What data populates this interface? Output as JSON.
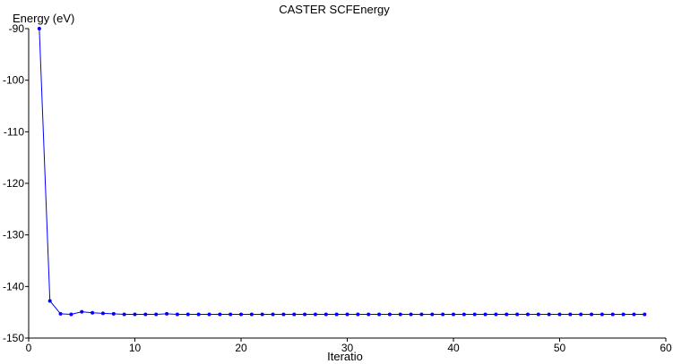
{
  "chart_data": {
    "type": "line",
    "title": "CASTER SCFEnergy",
    "xlabel": "Iteratio",
    "ylabel": "Energy (eV)",
    "xlim": [
      0,
      60
    ],
    "ylim": [
      -150,
      -90
    ],
    "xticks": [
      0,
      10,
      20,
      30,
      40,
      50,
      60
    ],
    "yticks": [
      -90,
      -100,
      -110,
      -120,
      -130,
      -140,
      -150
    ],
    "grid": false,
    "legend": "none",
    "series": [
      {
        "color": "#0000ff",
        "x": [
          1,
          2,
          3,
          4,
          5,
          6,
          7,
          8,
          9,
          10,
          11,
          12,
          13,
          14,
          15,
          16,
          17,
          18,
          19,
          20,
          21,
          22,
          23,
          24,
          25,
          26,
          27,
          28,
          29,
          30,
          31,
          32,
          33,
          34,
          35,
          36,
          37,
          38,
          39,
          40,
          41,
          42,
          43,
          44,
          45,
          46,
          47,
          48,
          49,
          50,
          51,
          52,
          53,
          54,
          55,
          56,
          57,
          58
        ],
        "values": [
          -90.0,
          -142.8,
          -145.3,
          -145.4,
          -144.9,
          -145.1,
          -145.2,
          -145.3,
          -145.4,
          -145.4,
          -145.4,
          -145.4,
          -145.3,
          -145.4,
          -145.4,
          -145.4,
          -145.4,
          -145.4,
          -145.4,
          -145.4,
          -145.4,
          -145.4,
          -145.4,
          -145.4,
          -145.4,
          -145.4,
          -145.4,
          -145.4,
          -145.4,
          -145.4,
          -145.4,
          -145.4,
          -145.4,
          -145.4,
          -145.4,
          -145.4,
          -145.4,
          -145.4,
          -145.4,
          -145.4,
          -145.4,
          -145.4,
          -145.4,
          -145.4,
          -145.4,
          -145.4,
          -145.4,
          -145.4,
          -145.4,
          -145.4,
          -145.4,
          -145.4,
          -145.4,
          -145.4,
          -145.4,
          -145.4,
          -145.4,
          -145.4
        ]
      }
    ]
  }
}
